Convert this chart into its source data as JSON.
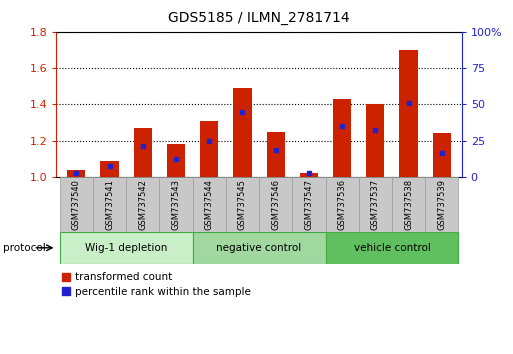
{
  "title": "GDS5185 / ILMN_2781714",
  "samples": [
    "GSM737540",
    "GSM737541",
    "GSM737542",
    "GSM737543",
    "GSM737544",
    "GSM737545",
    "GSM737546",
    "GSM737547",
    "GSM737536",
    "GSM737537",
    "GSM737538",
    "GSM737539"
  ],
  "red_values": [
    1.04,
    1.09,
    1.27,
    1.18,
    1.31,
    1.49,
    1.25,
    1.02,
    1.43,
    1.4,
    1.7,
    1.24
  ],
  "blue_values": [
    1.02,
    1.06,
    1.17,
    1.1,
    1.2,
    1.36,
    1.15,
    1.02,
    1.28,
    1.26,
    1.41,
    1.13
  ],
  "ylim_left": [
    1.0,
    1.8
  ],
  "ylim_right": [
    0,
    100
  ],
  "yticks_left": [
    1.0,
    1.2,
    1.4,
    1.6,
    1.8
  ],
  "yticks_right": [
    0,
    25,
    50,
    75,
    100
  ],
  "groups": [
    {
      "label": "Wig-1 depletion",
      "start": 0,
      "end": 3,
      "color": "#c8efc8"
    },
    {
      "label": "negative control",
      "start": 4,
      "end": 7,
      "color": "#a0d8a0"
    },
    {
      "label": "vehicle control",
      "start": 8,
      "end": 11,
      "color": "#60c060"
    }
  ],
  "bar_color": "#cc2200",
  "blue_color": "#2222cc",
  "bar_width": 0.55,
  "plot_bg": "#ffffff",
  "left_axis_color": "#cc2200",
  "right_axis_color": "#2222cc",
  "legend_red_label": "transformed count",
  "legend_blue_label": "percentile rank within the sample",
  "protocol_label": "protocol",
  "group_border_color": "#44aa44",
  "gray_cell_color": "#c8c8c8",
  "gray_cell_border": "#999999"
}
